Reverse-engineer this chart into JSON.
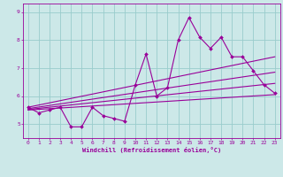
{
  "xlabel": "Windchill (Refroidissement éolien,°C)",
  "bg_color": "#cce8e8",
  "grid_color": "#99cccc",
  "line_color": "#990099",
  "spine_color": "#990099",
  "xlim": [
    -0.5,
    23.5
  ],
  "ylim": [
    4.5,
    9.3
  ],
  "xticks": [
    0,
    1,
    2,
    3,
    4,
    5,
    6,
    7,
    8,
    9,
    10,
    11,
    12,
    13,
    14,
    15,
    16,
    17,
    18,
    19,
    20,
    21,
    22,
    23
  ],
  "yticks": [
    5,
    6,
    7,
    8,
    9
  ],
  "main_x": [
    0,
    1,
    2,
    3,
    4,
    5,
    6,
    7,
    8,
    9,
    10,
    11,
    12,
    13,
    14,
    15,
    16,
    17,
    18,
    19,
    20,
    21,
    22,
    23
  ],
  "main_y": [
    5.6,
    5.4,
    5.5,
    5.6,
    4.9,
    4.9,
    5.6,
    5.3,
    5.2,
    5.1,
    6.4,
    7.5,
    6.0,
    6.3,
    8.0,
    8.8,
    8.1,
    7.7,
    8.1,
    7.4,
    7.4,
    6.9,
    6.4,
    6.1
  ],
  "trend_lines": [
    {
      "x": [
        0,
        23
      ],
      "y": [
        5.6,
        7.4
      ]
    },
    {
      "x": [
        0,
        23
      ],
      "y": [
        5.55,
        6.85
      ]
    },
    {
      "x": [
        0,
        23
      ],
      "y": [
        5.52,
        6.45
      ]
    },
    {
      "x": [
        0,
        23
      ],
      "y": [
        5.5,
        6.05
      ]
    }
  ]
}
